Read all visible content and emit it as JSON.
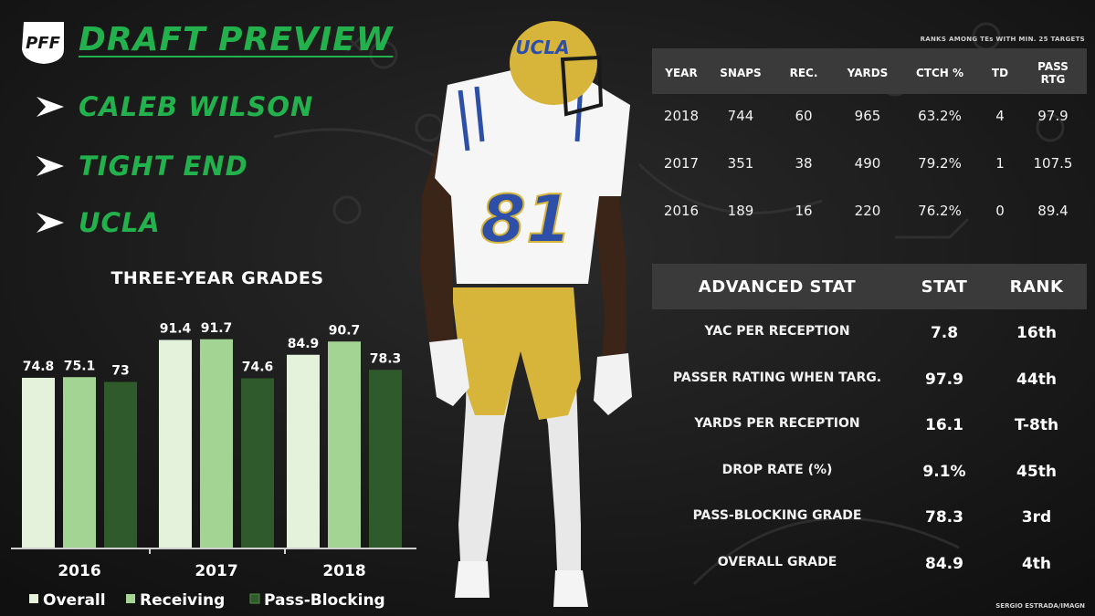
{
  "header": {
    "title": "DRAFT PREVIEW",
    "logo_text": "PFF",
    "player_name": "CALEB WILSON",
    "position": "TIGHT END",
    "school": "UCLA"
  },
  "colors": {
    "accent": "#22b14c",
    "overall": "#e4f2dc",
    "receiving": "#a3d493",
    "pass_blocking": "#2f5a2c",
    "header_band": "#3a3a3a"
  },
  "chart_data": {
    "type": "bar",
    "title": "THREE-YEAR GRADES",
    "categories": [
      "2016",
      "2017",
      "2018"
    ],
    "series": [
      {
        "name": "Overall",
        "values": [
          74.8,
          91.4,
          84.9
        ]
      },
      {
        "name": "Receiving",
        "values": [
          75.1,
          91.7,
          90.7
        ]
      },
      {
        "name": "Pass-Blocking",
        "values": [
          73,
          74.6,
          78.3
        ]
      }
    ],
    "value_labels": [
      [
        "74.8",
        "91.4",
        "84.9"
      ],
      [
        "75.1",
        "91.7",
        "90.7"
      ],
      [
        "73",
        "74.6",
        "78.3"
      ]
    ],
    "legend_position": "bottom",
    "grid": false
  },
  "stats_table": {
    "note": "RANKS AMONG TEs WITH MIN. 25 TARGETS",
    "headers": [
      "YEAR",
      "SNAPS",
      "REC.",
      "YARDS",
      "CTCH %",
      "TD",
      "PASS RTG"
    ],
    "rows": [
      [
        "2018",
        "744",
        "60",
        "965",
        "63.2%",
        "4",
        "97.9"
      ],
      [
        "2017",
        "351",
        "38",
        "490",
        "79.2%",
        "1",
        "107.5"
      ],
      [
        "2016",
        "189",
        "16",
        "220",
        "76.2%",
        "0",
        "89.4"
      ]
    ]
  },
  "advanced_table": {
    "headers": [
      "ADVANCED STAT",
      "STAT",
      "RANK"
    ],
    "rows": [
      [
        "YAC PER RECEPTION",
        "7.8",
        "16th"
      ],
      [
        "PASSER RATING WHEN TARG.",
        "97.9",
        "44th"
      ],
      [
        "YARDS PER RECEPTION",
        "16.1",
        "T-8th"
      ],
      [
        "DROP RATE (%)",
        "9.1%",
        "45th"
      ],
      [
        "PASS-BLOCKING GRADE",
        "78.3",
        "3rd"
      ],
      [
        "OVERALL GRADE",
        "84.9",
        "4th"
      ]
    ]
  },
  "player_figure": {
    "helmet_text": "UCLA",
    "jersey_number": "81"
  },
  "credit": "SERGIO ESTRADA/IMAGN"
}
